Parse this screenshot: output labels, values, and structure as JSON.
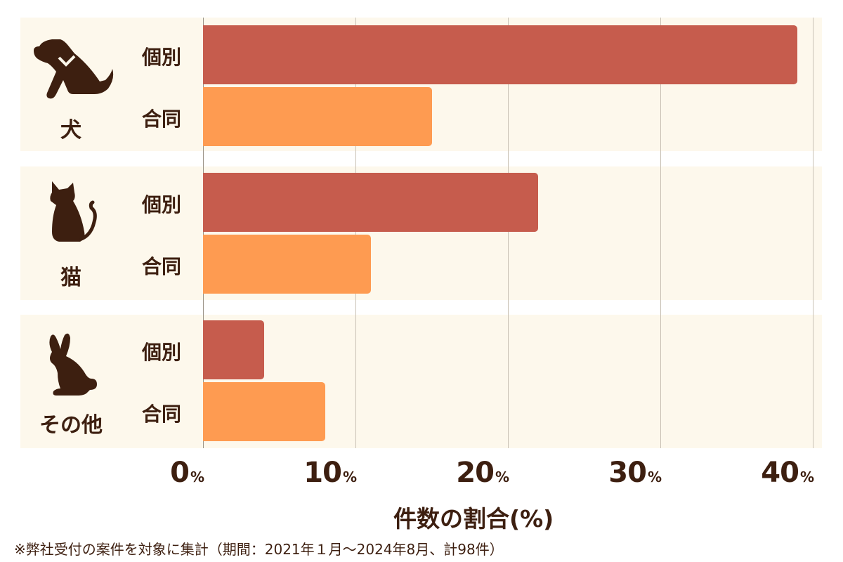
{
  "chart_data": {
    "type": "bar",
    "orientation": "horizontal",
    "categories": [
      "犬",
      "猫",
      "その他"
    ],
    "series": [
      {
        "name": "個別",
        "color": "#c65c4d",
        "values": [
          39,
          22,
          4
        ]
      },
      {
        "name": "合同",
        "color": "#fe9b51",
        "values": [
          15,
          11,
          8
        ]
      }
    ],
    "xlabel": "件数の割合(%)",
    "xlim": [
      0,
      40
    ],
    "xticks": [
      "0",
      "10",
      "20",
      "30",
      "40"
    ],
    "tick_unit": "%",
    "grid": true,
    "footnote": "※弊社受付の案件を対象に集計（期間：2021年１月〜2024年8月、計98件）"
  },
  "groups": [
    {
      "label": "犬",
      "icon": "dog-icon",
      "rows": [
        {
          "label": "個別"
        },
        {
          "label": "合同"
        }
      ]
    },
    {
      "label": "猫",
      "icon": "cat-icon",
      "rows": [
        {
          "label": "個別"
        },
        {
          "label": "合同"
        }
      ]
    },
    {
      "label": "その他",
      "icon": "rabbit-icon",
      "rows": [
        {
          "label": "個別"
        },
        {
          "label": "合同"
        }
      ]
    }
  ],
  "axis": {
    "ticks": [
      "0",
      "10",
      "20",
      "30",
      "40"
    ],
    "unit": "%",
    "label": "件数の割合(%)"
  },
  "footnote": "※弊社受付の案件を対象に集計（期間：2021年１月〜2024年8月、計98件）"
}
